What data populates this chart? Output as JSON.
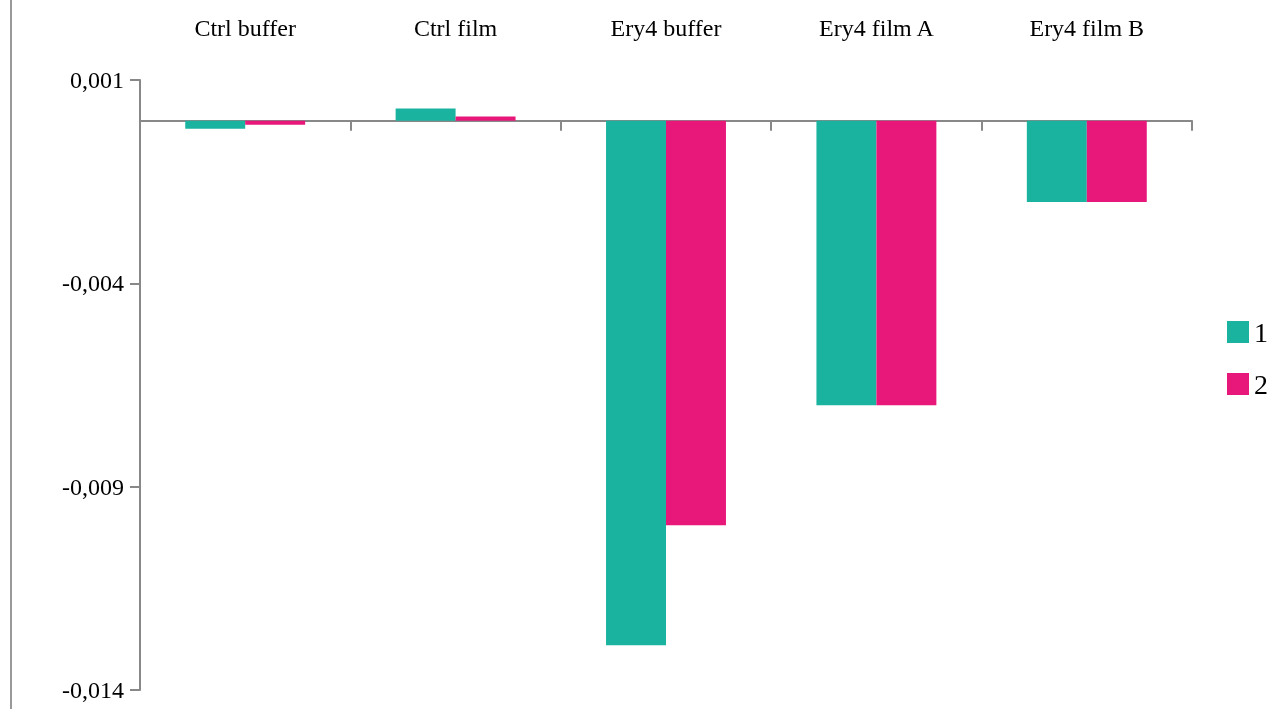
{
  "chart_data": {
    "type": "bar",
    "categories": [
      "Ctrl buffer",
      "Ctrl film",
      "Ery4 buffer",
      "Ery4 film A",
      "Ery4 film B"
    ],
    "series": [
      {
        "name": "1",
        "color": "#1ab39f",
        "values": [
          -0.0002,
          0.0003,
          -0.0129,
          -0.007,
          -0.002
        ]
      },
      {
        "name": "2",
        "color": "#e8177a",
        "values": [
          -0.0001,
          0.0001,
          -0.00995,
          -0.007,
          -0.002
        ]
      }
    ],
    "ylim": [
      -0.014,
      0.001
    ],
    "yticks": [
      {
        "value": 0.001,
        "label": "0,001"
      },
      {
        "value": -0.004,
        "label": "-0,004"
      },
      {
        "value": -0.009,
        "label": "-0,009"
      },
      {
        "value": -0.014,
        "label": "-0,014"
      }
    ],
    "grid": false,
    "legend": "right"
  }
}
